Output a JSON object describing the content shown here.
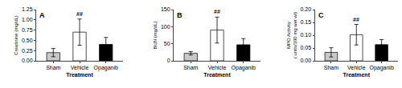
{
  "chart_data": [
    {
      "type": "bar",
      "title": "A",
      "xlabel": "Treatment",
      "ylabel": "Creatinine (mg/dL)",
      "categories": [
        "Sham",
        "Vehicle",
        "Opaganib"
      ],
      "values": [
        0.2,
        0.7,
        0.4
      ],
      "errors": [
        0.1,
        0.32,
        0.17
      ],
      "colors": [
        "#c8c8c8",
        "#ffffff",
        "#000000"
      ],
      "ylim": [
        0,
        1.25
      ],
      "yticks": [
        {
          "value": 0,
          "label": "0.00"
        },
        0.25,
        {
          "value": 0.5,
          "label": "0.50"
        },
        0.75,
        {
          "value": 1,
          "label": "1.00"
        },
        1.25
      ],
      "annotations": [
        {
          "category": "Vehicle",
          "text": "##"
        }
      ],
      "grid": false
    },
    {
      "type": "bar",
      "title": "B",
      "xlabel": "Treatment",
      "ylabel": "BUN (mg/dL)",
      "categories": [
        "Sham",
        "Vehicle",
        "Opaganib"
      ],
      "values": [
        22,
        90,
        47
      ],
      "errors": [
        5,
        38,
        18
      ],
      "colors": [
        "#c8c8c8",
        "#ffffff",
        "#000000"
      ],
      "ylim": [
        0,
        150
      ],
      "yticks": [
        0,
        50,
        100,
        150
      ],
      "annotations": [
        {
          "category": "Vehicle",
          "text": "##"
        }
      ],
      "grid": false
    },
    {
      "type": "bar",
      "title": "C",
      "xlabel": "Treatment",
      "ylabel": "MPO Activity\n( units/100 mg wet wt)",
      "categories": [
        "Sham",
        "Vehicle",
        "Opaganib"
      ],
      "values": [
        0.033,
        0.102,
        0.063
      ],
      "errors": [
        0.018,
        0.04,
        0.02
      ],
      "colors": [
        "#c8c8c8",
        "#ffffff",
        "#000000"
      ],
      "ylim": [
        0,
        0.2
      ],
      "yticks": [
        {
          "value": 0,
          "label": "0.00"
        },
        0.05,
        {
          "value": 0.1,
          "label": "0.10"
        },
        0.15,
        {
          "value": 0.2,
          "label": "0.20"
        }
      ],
      "annotations": [
        {
          "category": "Vehicle",
          "text": "##"
        }
      ],
      "grid": false
    }
  ]
}
